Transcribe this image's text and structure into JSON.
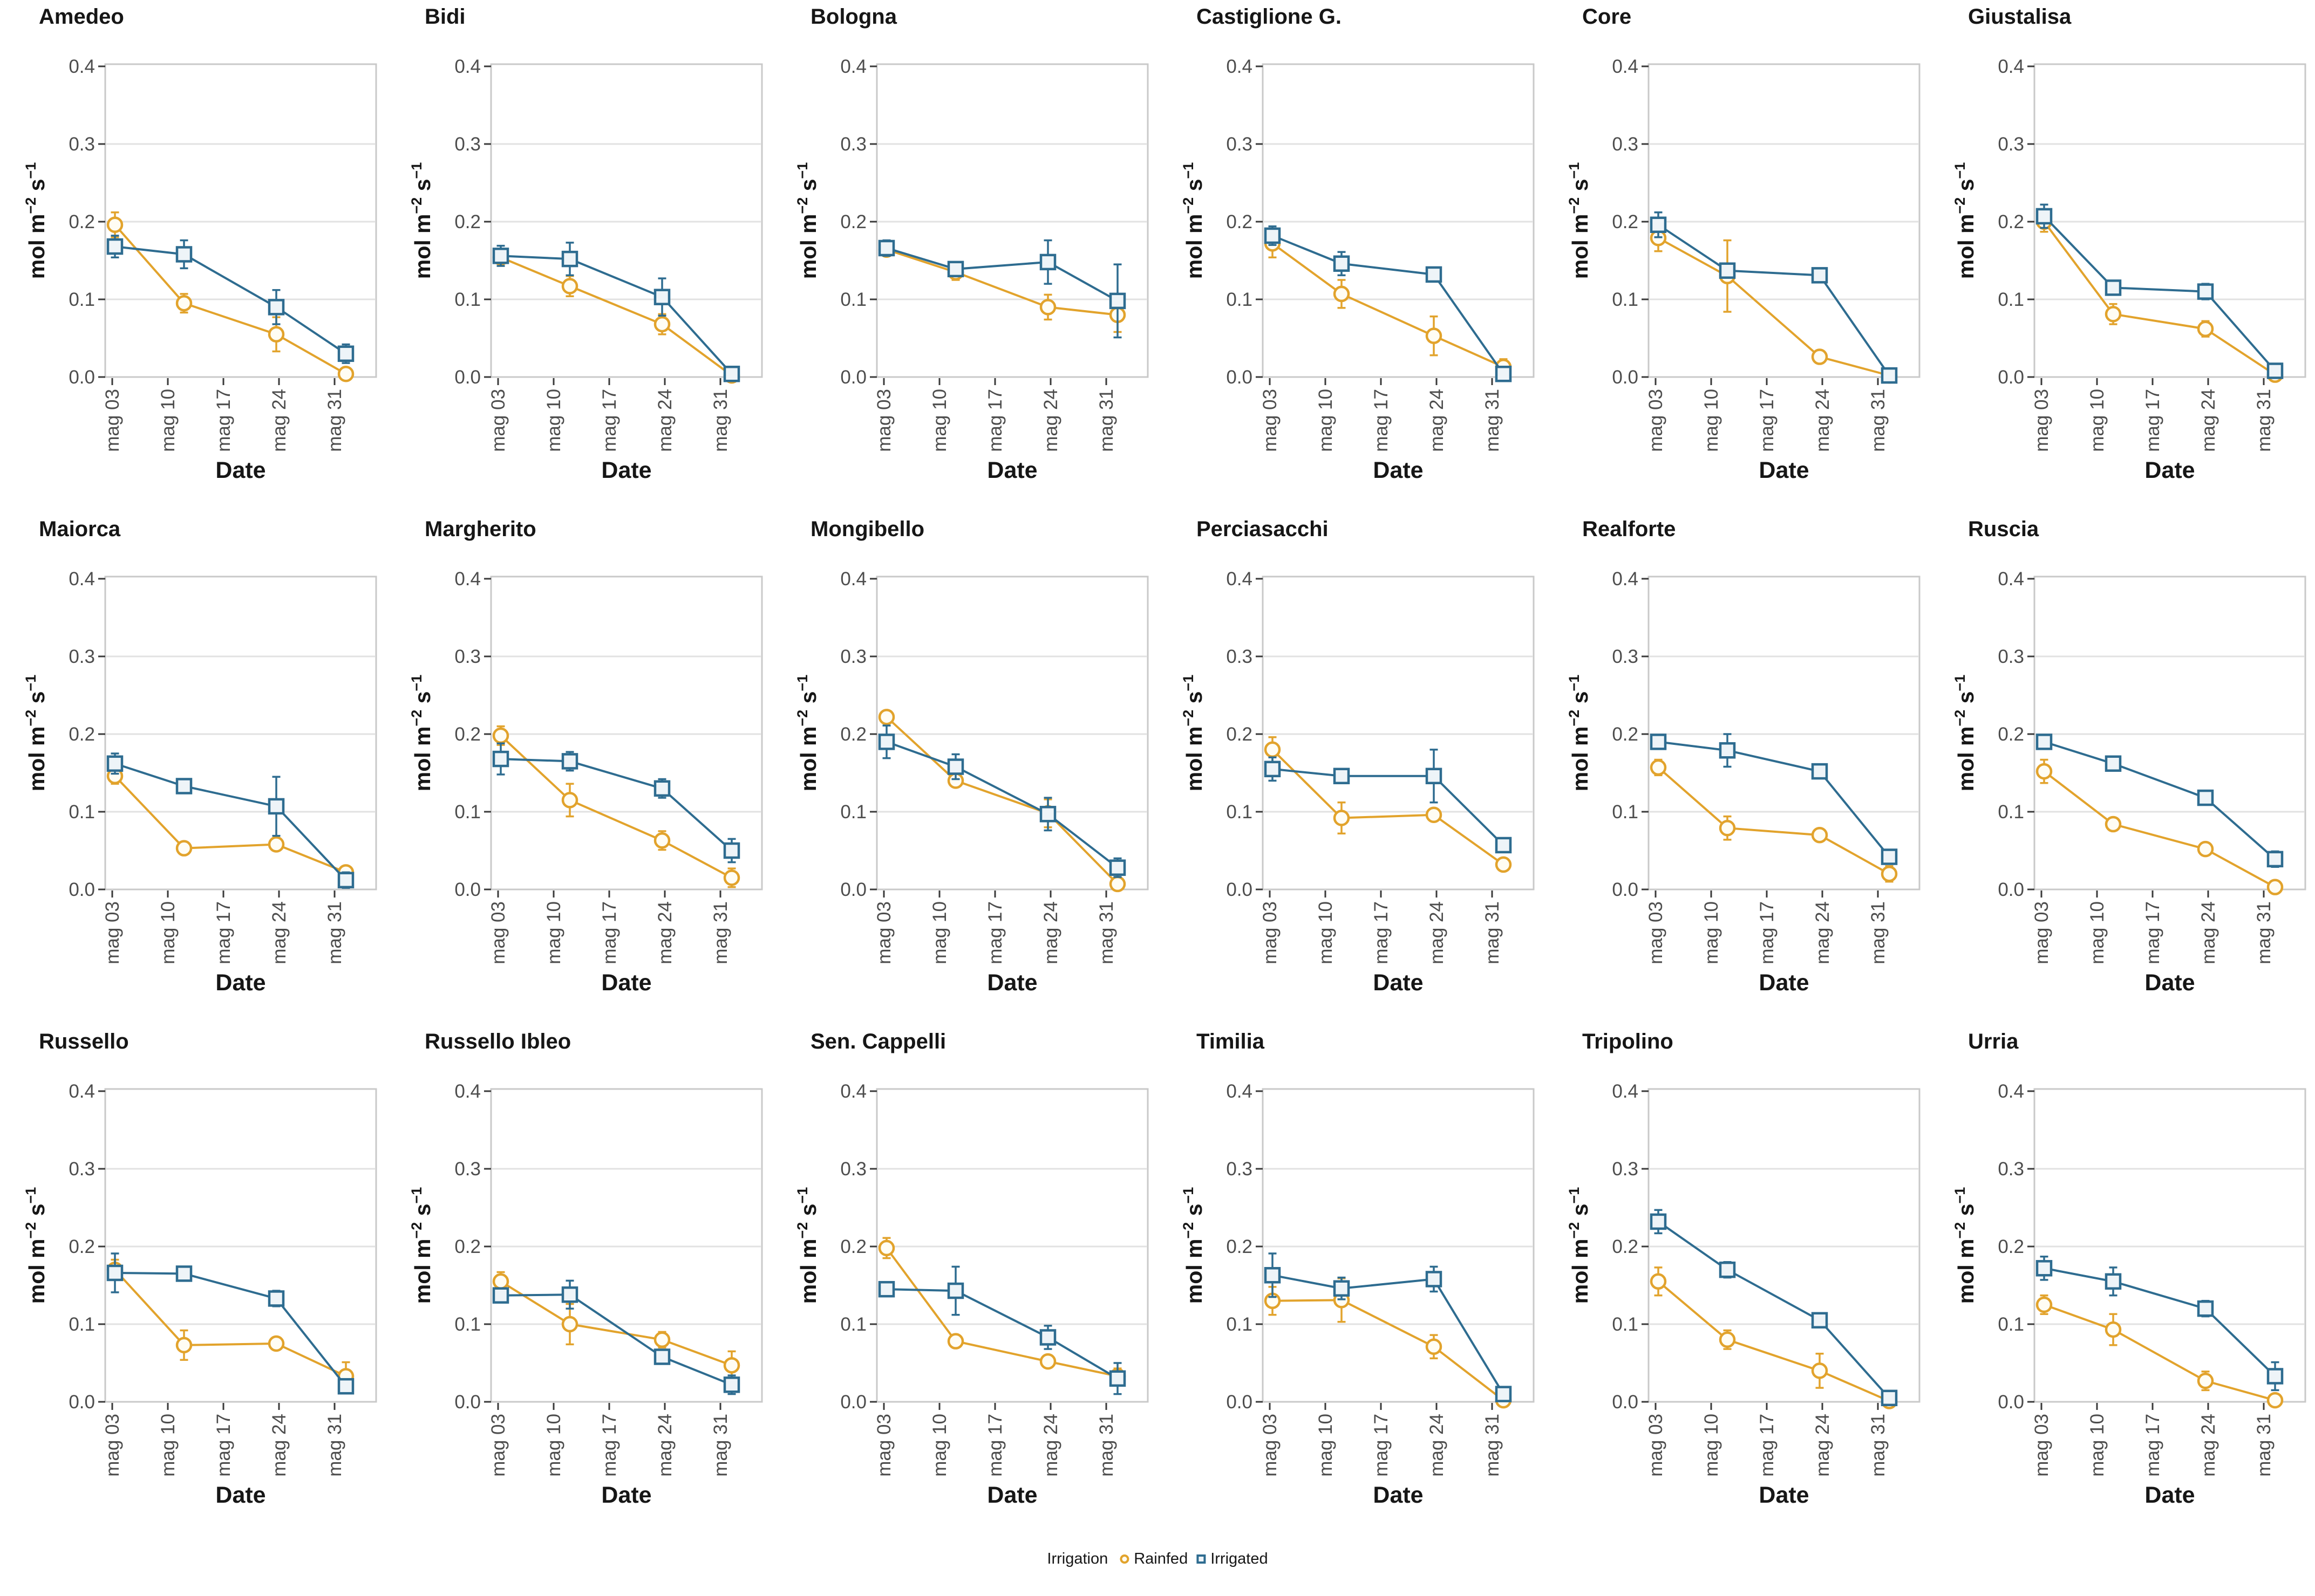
{
  "chart_data": {
    "type": "line",
    "description": "Facet grid of stomatal conductance over time for 18 durum wheat varieties under two irrigation treatments, with mean points and error bars",
    "xlabel": "Date",
    "ylabel": "mol m⁻² s⁻¹",
    "ylabel_parts": [
      {
        "t": "mol m",
        "sup": false
      },
      {
        "t": "−2",
        "sup": true
      },
      {
        "t": " s",
        "sup": false
      },
      {
        "t": "−1",
        "sup": true
      }
    ],
    "ylim": [
      0.0,
      0.4
    ],
    "ytick_labels": [
      "0.0",
      "0.1",
      "0.2",
      "0.3",
      "0.4"
    ],
    "ytick_values": [
      0.0,
      0.1,
      0.2,
      0.3,
      0.4
    ],
    "xtick_labels": [
      "mag 03",
      "mag 10",
      "mag 17",
      "mag 24",
      "mag 31"
    ],
    "sample_dates": [
      "mag 03",
      "mag 10",
      "mag 24",
      "mag 31"
    ],
    "grid": "horizontal-major-only",
    "legend": {
      "title": "Irrigation",
      "position": "bottom-center",
      "entries": [
        {
          "label": "Rainfed",
          "marker": "open-circle",
          "color": "#E2A32C"
        },
        {
          "label": "Irrigated",
          "marker": "open-square",
          "color": "#2E6C90"
        }
      ]
    },
    "colors": {
      "rainfed": "#E2A32C",
      "irrigated": "#2E6C90",
      "grid": "#e2e2e2",
      "panel_border": "#c9c9c9",
      "tick_text": "#4d4d4d",
      "tick_mark": "#3a3a3a"
    },
    "facets": [
      {
        "title": "Amedeo",
        "rainfed": {
          "values": [
            0.196,
            0.095,
            0.055,
            0.004
          ],
          "errors": [
            0.016,
            0.012,
            0.022,
            0.004
          ]
        },
        "irrigated": {
          "values": [
            0.168,
            0.158,
            0.09,
            0.03
          ],
          "errors": [
            0.014,
            0.018,
            0.022,
            0.012
          ]
        }
      },
      {
        "title": "Bidi",
        "rainfed": {
          "values": [
            0.154,
            0.117,
            0.068,
            0.002
          ],
          "errors": [
            0.008,
            0.013,
            0.013,
            0.002
          ]
        },
        "irrigated": {
          "values": [
            0.156,
            0.152,
            0.103,
            0.004
          ],
          "errors": [
            0.013,
            0.021,
            0.024,
            0.003
          ]
        }
      },
      {
        "title": "Bologna",
        "rainfed": {
          "values": [
            0.164,
            0.135,
            0.09,
            0.08
          ],
          "errors": [
            0.008,
            0.01,
            0.016,
            0.022
          ]
        },
        "irrigated": {
          "values": [
            0.166,
            0.139,
            0.148,
            0.098
          ],
          "errors": [
            0.01,
            0.008,
            0.028,
            0.047
          ]
        }
      },
      {
        "title": "Castiglione G.",
        "rainfed": {
          "values": [
            0.172,
            0.107,
            0.053,
            0.013
          ],
          "errors": [
            0.018,
            0.018,
            0.025,
            0.01
          ]
        },
        "irrigated": {
          "values": [
            0.182,
            0.146,
            0.132,
            0.004
          ],
          "errors": [
            0.012,
            0.015,
            0.006,
            0.004
          ]
        }
      },
      {
        "title": "Core",
        "rainfed": {
          "values": [
            0.179,
            0.13,
            0.026,
            0.002
          ],
          "errors": [
            0.017,
            0.046,
            0.006,
            0.002
          ]
        },
        "irrigated": {
          "values": [
            0.196,
            0.137,
            0.131,
            0.002
          ],
          "errors": [
            0.016,
            0.008,
            0.008,
            0.002
          ]
        }
      },
      {
        "title": "Giustalisa",
        "rainfed": {
          "values": [
            0.2,
            0.081,
            0.062,
            0.003
          ],
          "errors": [
            0.013,
            0.013,
            0.01,
            0.003
          ]
        },
        "irrigated": {
          "values": [
            0.207,
            0.115,
            0.11,
            0.008
          ],
          "errors": [
            0.015,
            0.008,
            0.01,
            0.008
          ]
        }
      },
      {
        "title": "Maiorca",
        "rainfed": {
          "values": [
            0.146,
            0.053,
            0.058,
            0.022
          ],
          "errors": [
            0.01,
            0.008,
            0.008,
            0.008
          ]
        },
        "irrigated": {
          "values": [
            0.162,
            0.133,
            0.107,
            0.012
          ],
          "errors": [
            0.013,
            0.008,
            0.038,
            0.01
          ]
        }
      },
      {
        "title": "Margherito",
        "rainfed": {
          "values": [
            0.198,
            0.115,
            0.063,
            0.015
          ],
          "errors": [
            0.012,
            0.021,
            0.012,
            0.012
          ]
        },
        "irrigated": {
          "values": [
            0.168,
            0.165,
            0.13,
            0.05
          ],
          "errors": [
            0.02,
            0.012,
            0.012,
            0.015
          ]
        }
      },
      {
        "title": "Mongibello",
        "rainfed": {
          "values": [
            0.222,
            0.14,
            0.098,
            0.007
          ],
          "errors": [
            0.008,
            0.008,
            0.018,
            0.005
          ]
        },
        "irrigated": {
          "values": [
            0.19,
            0.158,
            0.097,
            0.028
          ],
          "errors": [
            0.021,
            0.016,
            0.021,
            0.012
          ]
        }
      },
      {
        "title": "Perciasacchi",
        "rainfed": {
          "values": [
            0.18,
            0.092,
            0.096,
            0.032
          ],
          "errors": [
            0.016,
            0.02,
            0.008,
            0.008
          ]
        },
        "irrigated": {
          "values": [
            0.155,
            0.146,
            0.146,
            0.057
          ],
          "errors": [
            0.015,
            0.008,
            0.034,
            0.008
          ]
        }
      },
      {
        "title": "Realforte",
        "rainfed": {
          "values": [
            0.157,
            0.079,
            0.07,
            0.02
          ],
          "errors": [
            0.01,
            0.015,
            0.008,
            0.01
          ]
        },
        "irrigated": {
          "values": [
            0.19,
            0.179,
            0.152,
            0.042
          ],
          "errors": [
            0.008,
            0.021,
            0.008,
            0.008
          ]
        }
      },
      {
        "title": "Ruscia",
        "rainfed": {
          "values": [
            0.152,
            0.084,
            0.052,
            0.003
          ],
          "errors": [
            0.015,
            0.006,
            0.005,
            0.003
          ]
        },
        "irrigated": {
          "values": [
            0.19,
            0.162,
            0.118,
            0.039
          ],
          "errors": [
            0.006,
            0.008,
            0.008,
            0.01
          ]
        }
      },
      {
        "title": "Russello",
        "rainfed": {
          "values": [
            0.17,
            0.073,
            0.075,
            0.033
          ],
          "errors": [
            0.013,
            0.019,
            0.008,
            0.018
          ]
        },
        "irrigated": {
          "values": [
            0.166,
            0.165,
            0.133,
            0.02
          ],
          "errors": [
            0.025,
            0.008,
            0.01,
            0.008
          ]
        }
      },
      {
        "title": "Russello Ibleo",
        "rainfed": {
          "values": [
            0.155,
            0.1,
            0.08,
            0.047
          ],
          "errors": [
            0.012,
            0.026,
            0.01,
            0.018
          ]
        },
        "irrigated": {
          "values": [
            0.137,
            0.138,
            0.058,
            0.022
          ],
          "errors": [
            0.008,
            0.018,
            0.008,
            0.012
          ]
        }
      },
      {
        "title": "Sen. Cappelli",
        "rainfed": {
          "values": [
            0.198,
            0.078,
            0.052,
            0.033
          ],
          "errors": [
            0.013,
            0.005,
            0.005,
            0.01
          ]
        },
        "irrigated": {
          "values": [
            0.145,
            0.143,
            0.083,
            0.03
          ],
          "errors": [
            0.008,
            0.031,
            0.015,
            0.02
          ]
        }
      },
      {
        "title": "Timilia",
        "rainfed": {
          "values": [
            0.13,
            0.131,
            0.071,
            0.002
          ],
          "errors": [
            0.018,
            0.028,
            0.015,
            0.002
          ]
        },
        "irrigated": {
          "values": [
            0.163,
            0.146,
            0.158,
            0.01
          ],
          "errors": [
            0.028,
            0.014,
            0.016,
            0.005
          ]
        }
      },
      {
        "title": "Tripolino",
        "rainfed": {
          "values": [
            0.155,
            0.08,
            0.04,
            0.001
          ],
          "errors": [
            0.018,
            0.012,
            0.022,
            0.001
          ]
        },
        "irrigated": {
          "values": [
            0.232,
            0.17,
            0.105,
            0.005
          ],
          "errors": [
            0.015,
            0.01,
            0.008,
            0.003
          ]
        }
      },
      {
        "title": "Urria",
        "rainfed": {
          "values": [
            0.125,
            0.093,
            0.027,
            0.002
          ],
          "errors": [
            0.012,
            0.02,
            0.012,
            0.002
          ]
        },
        "irrigated": {
          "values": [
            0.172,
            0.155,
            0.12,
            0.033
          ],
          "errors": [
            0.015,
            0.018,
            0.01,
            0.018
          ]
        }
      }
    ]
  }
}
